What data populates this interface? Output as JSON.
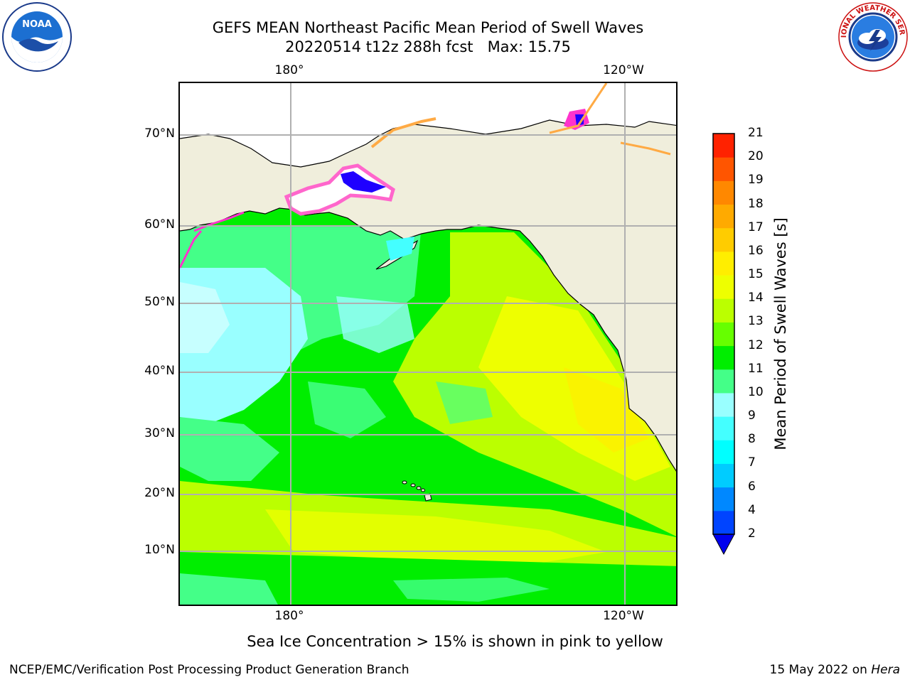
{
  "header": {
    "title_line_1": "GEFS MEAN Northeast Pacific Mean Period of Swell Waves",
    "title_line_2": "20220514 t12z 288h fcst   Max: 15.75"
  },
  "map": {
    "lon_labels_top": [
      "180°",
      "120°W"
    ],
    "lon_labels_bottom": [
      "180°",
      "120°W"
    ],
    "lat_labels": [
      "70°N",
      "60°N",
      "50°N",
      "40°N",
      "30°N",
      "20°N",
      "10°N"
    ]
  },
  "colorbar": {
    "label": "Mean Period of Swell Waves [s]",
    "ticks": [
      "2",
      "4",
      "6",
      "7",
      "8",
      "9",
      "10",
      "11",
      "12",
      "13",
      "14",
      "15",
      "16",
      "17",
      "18",
      "19",
      "20",
      "21"
    ],
    "colors": [
      "#0044ff",
      "#0088ff",
      "#00ccff",
      "#00ffff",
      "#44ffff",
      "#99ffff",
      "#44ff88",
      "#00ee00",
      "#66ff00",
      "#bbff00",
      "#eeff00",
      "#ffee00",
      "#ffcc00",
      "#ffaa00",
      "#ff8800",
      "#ff5500",
      "#ff2200",
      "#ff0000"
    ],
    "extend_color": "#0000ee"
  },
  "footer": {
    "note": "Sea Ice Concentration > 15% is shown in pink to yellow",
    "credit": "NCEP/EMC/Verification Post Processing Product Generation Branch",
    "date": "15 May 2022 on",
    "host": "Hera"
  },
  "logos": {
    "noaa_text": "NOAA",
    "nws_text": "NATIONAL WEATHER SERVICE"
  }
}
